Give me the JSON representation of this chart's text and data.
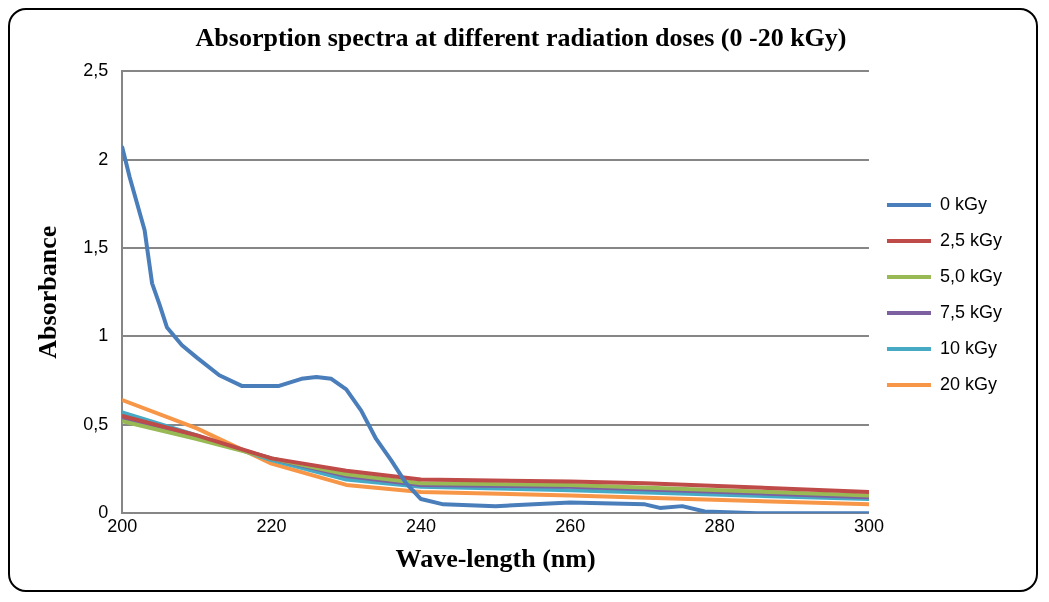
{
  "chart_data": {
    "type": "line",
    "title": "Absorption spectra at different radiation doses (0 -20 kGy)",
    "xlabel": "Wave-length (nm)",
    "ylabel": "Absorbance",
    "xlim": [
      200,
      300
    ],
    "xticks": [
      200,
      220,
      240,
      260,
      280,
      300
    ],
    "ylim": [
      0,
      2.5
    ],
    "yticks": [
      0,
      {
        "value": 0.5,
        "label": "0,5"
      },
      1,
      {
        "value": 1.5,
        "label": "1,5"
      },
      2,
      {
        "value": 2.5,
        "label": "2,5"
      }
    ],
    "grid": "y",
    "legend": "right",
    "marker": "none",
    "line_style": "solid",
    "series": [
      {
        "name": "0 kGy",
        "color": "#4a7ebb",
        "x": [
          200,
          201,
          203,
          204,
          205,
          206,
          208,
          210,
          213,
          216,
          218,
          221,
          224,
          226,
          228,
          230,
          232,
          234,
          236,
          238,
          240,
          243,
          250,
          260,
          270,
          272,
          275,
          278,
          285,
          300
        ],
        "values": [
          2.07,
          1.9,
          1.6,
          1.3,
          1.18,
          1.05,
          0.95,
          0.88,
          0.78,
          0.72,
          0.72,
          0.72,
          0.76,
          0.77,
          0.76,
          0.7,
          0.58,
          0.42,
          0.3,
          0.17,
          0.08,
          0.05,
          0.04,
          0.06,
          0.05,
          0.03,
          0.04,
          0.01,
          0,
          0
        ]
      },
      {
        "name": "2,5 kGy",
        "color": "#be4b48",
        "x": [
          200,
          210,
          220,
          230,
          240,
          260,
          270,
          300
        ],
        "values": [
          0.55,
          0.44,
          0.31,
          0.24,
          0.19,
          0.18,
          0.17,
          0.12
        ]
      },
      {
        "name": "5,0 kGy",
        "color": "#98b954",
        "x": [
          200,
          210,
          220,
          230,
          240,
          260,
          300
        ],
        "values": [
          0.52,
          0.42,
          0.31,
          0.22,
          0.17,
          0.16,
          0.1
        ]
      },
      {
        "name": "7,5 kGy",
        "color": "#7d60a0",
        "x": [
          200,
          210,
          220,
          230,
          240,
          260,
          300
        ],
        "values": [
          0.54,
          0.43,
          0.31,
          0.21,
          0.16,
          0.15,
          0.09
        ]
      },
      {
        "name": "10 kGy",
        "color": "#46aac5",
        "x": [
          200,
          210,
          220,
          230,
          240,
          260,
          300
        ],
        "values": [
          0.57,
          0.44,
          0.3,
          0.19,
          0.15,
          0.13,
          0.08
        ]
      },
      {
        "name": "20 kGy",
        "color": "#f79646",
        "x": [
          200,
          210,
          220,
          230,
          240,
          260,
          300
        ],
        "values": [
          0.64,
          0.48,
          0.28,
          0.16,
          0.12,
          0.1,
          0.05
        ]
      }
    ]
  }
}
